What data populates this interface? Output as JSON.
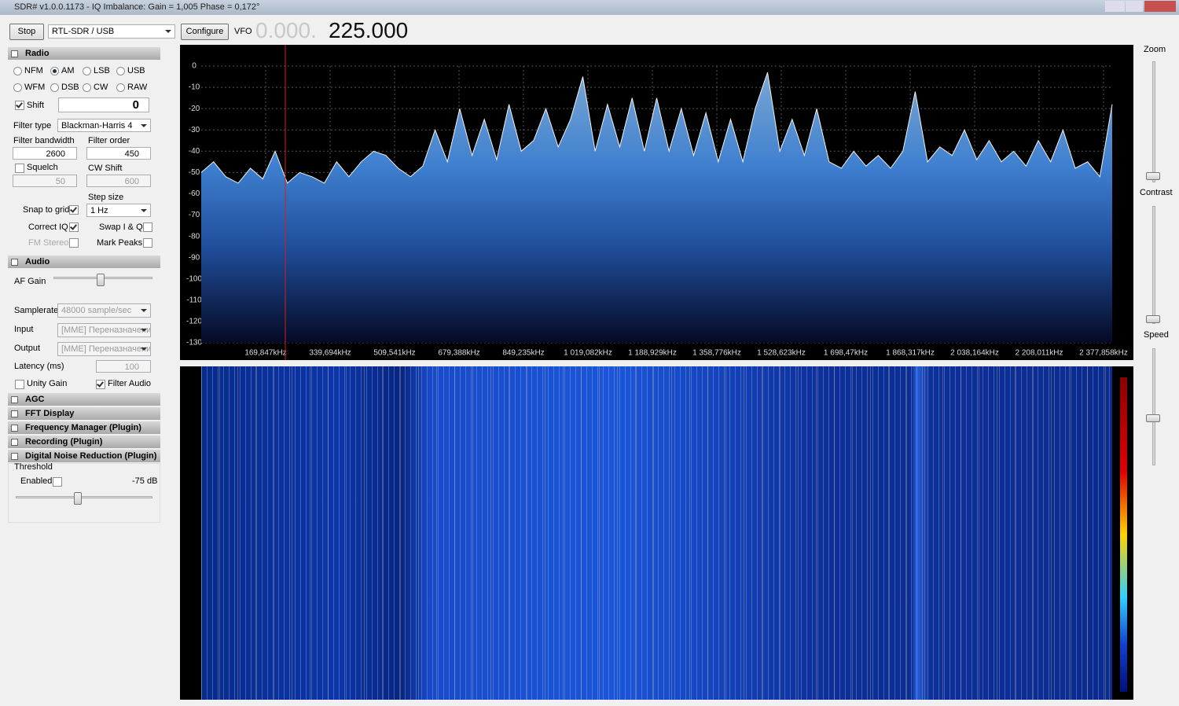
{
  "window": {
    "title": "SDR# v1.0.0.1173 - IQ Imbalance: Gain = 1,005 Phase = 0,172°"
  },
  "toolbar": {
    "stop": "Stop",
    "source": "RTL-SDR / USB",
    "configure": "Configure",
    "vfo_label": "VFO",
    "vfo_dim": "0.000.",
    "vfo_freq": "225.000"
  },
  "radio": {
    "header": "Radio",
    "modes": [
      "NFM",
      "AM",
      "LSB",
      "USB",
      "WFM",
      "DSB",
      "CW",
      "RAW"
    ],
    "selected_mode": 1,
    "shift": {
      "label": "Shift",
      "checked": true,
      "value": "0"
    },
    "filter_type": {
      "label": "Filter type",
      "value": "Blackman-Harris 4"
    },
    "filter_bandwidth": {
      "label": "Filter bandwidth",
      "value": "2600"
    },
    "filter_order": {
      "label": "Filter order",
      "value": "450"
    },
    "squelch": {
      "label": "Squelch",
      "checked": false,
      "value": "50"
    },
    "cw_shift": {
      "label": "CW Shift",
      "value": "600"
    },
    "step_size": {
      "label": "Step size",
      "value": "1 Hz"
    },
    "snap_to_grid": {
      "label": "Snap to grid",
      "checked": true
    },
    "correct_iq": {
      "label": "Correct IQ",
      "checked": true
    },
    "swap_iq": {
      "label": "Swap I & Q",
      "checked": false
    },
    "fm_stereo": {
      "label": "FM Stereo",
      "checked": false
    },
    "mark_peaks": {
      "label": "Mark Peaks",
      "checked": false
    }
  },
  "audio": {
    "header": "Audio",
    "af_gain": "AF Gain",
    "samplerate": {
      "label": "Samplerate",
      "value": "48000 sample/sec"
    },
    "input": {
      "label": "Input",
      "value": "[MME] Переназначени"
    },
    "output": {
      "label": "Output",
      "value": "[MME] Переназначени"
    },
    "latency": {
      "label": "Latency (ms)",
      "value": "100"
    },
    "unity_gain": {
      "label": "Unity Gain",
      "checked": false
    },
    "filter_audio": {
      "label": "Filter Audio",
      "checked": true
    }
  },
  "sections": [
    "AGC",
    "FFT Display",
    "Frequency Manager (Plugin)",
    "Recording (Plugin)",
    "Digital Noise Reduction (Plugin)"
  ],
  "noise_reduction": {
    "threshold": "Threshold",
    "enabled": {
      "label": "Enabled",
      "checked": false
    },
    "level": "-75 dB"
  },
  "side": {
    "zoom": "Zoom",
    "contrast": "Contrast",
    "speed": "Speed"
  },
  "spectrum": {
    "ylim": [
      -130,
      0
    ],
    "yticks": [
      0,
      -10,
      -20,
      -30,
      -40,
      -50,
      -60,
      -70,
      -80,
      -90,
      -100,
      -110,
      -120,
      -130
    ],
    "xtick_labels": [
      "169,847kHz",
      "339,694kHz",
      "509,541kHz",
      "679,388kHz",
      "849,235kHz",
      "1 019,082kHz",
      "1 188,929kHz",
      "1 358,776kHz",
      "1 528,623kHz",
      "1 698,47kHz",
      "1 868,317kHz",
      "2 038,164kHz",
      "2 208,011kHz",
      "2 377,858kHz"
    ],
    "values": [
      -50,
      -45,
      -52,
      -55,
      -48,
      -53,
      -40,
      -55,
      -50,
      -52,
      -55,
      -45,
      -52,
      -45,
      -40,
      -42,
      -48,
      -52,
      -47,
      -30,
      -45,
      -20,
      -42,
      -25,
      -44,
      -18,
      -40,
      -35,
      -20,
      -38,
      -25,
      -5,
      -40,
      -18,
      -38,
      -15,
      -40,
      -15,
      -40,
      -20,
      -42,
      -22,
      -45,
      -25,
      -45,
      -20,
      -3,
      -40,
      -25,
      -42,
      -20,
      -45,
      -48,
      -40,
      -47,
      -42,
      -48,
      -40,
      -12,
      -45,
      -38,
      -42,
      -30,
      -44,
      -35,
      -45,
      -40,
      -47,
      -35,
      -45,
      -30,
      -48,
      -45,
      -52,
      -18
    ]
  }
}
